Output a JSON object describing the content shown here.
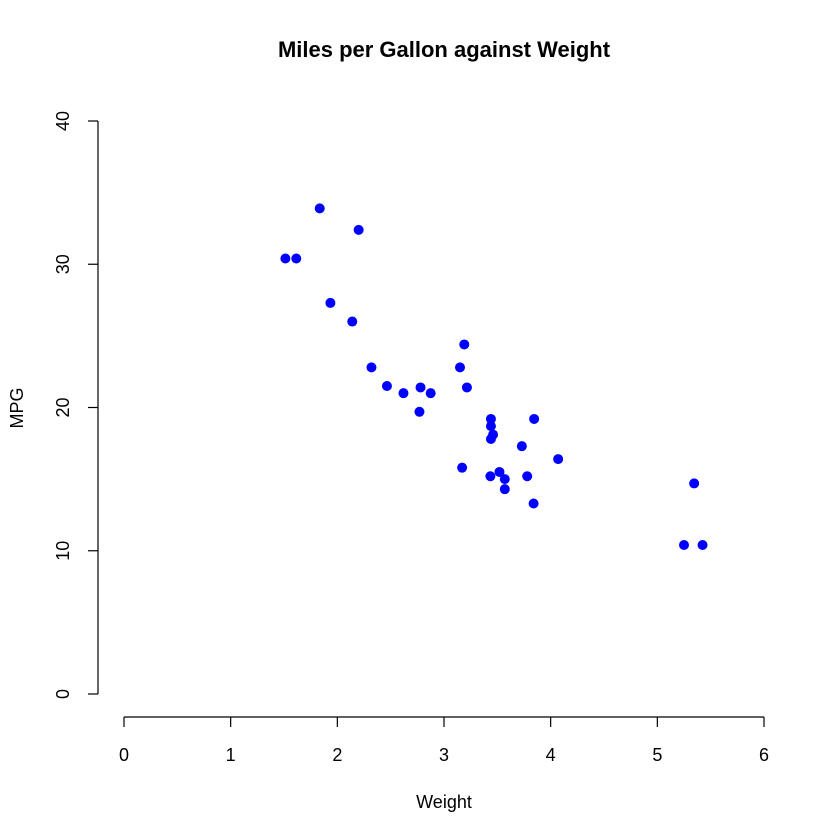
{
  "chart_data": {
    "type": "scatter",
    "title": "Miles per Gallon against Weight",
    "xlabel": "Weight",
    "ylabel": "MPG",
    "xlim": [
      0,
      6
    ],
    "ylim": [
      0,
      40
    ],
    "xticks": [
      0,
      1,
      2,
      3,
      4,
      5,
      6
    ],
    "yticks": [
      0,
      10,
      20,
      30,
      40
    ],
    "grid": false,
    "marker_color": "#0000ff",
    "series": [
      {
        "points": [
          {
            "x": 2.62,
            "y": 21.0
          },
          {
            "x": 2.875,
            "y": 21.0
          },
          {
            "x": 2.32,
            "y": 22.8
          },
          {
            "x": 3.215,
            "y": 21.4
          },
          {
            "x": 3.44,
            "y": 18.7
          },
          {
            "x": 3.46,
            "y": 18.1
          },
          {
            "x": 3.57,
            "y": 14.3
          },
          {
            "x": 3.19,
            "y": 24.4
          },
          {
            "x": 3.15,
            "y": 22.8
          },
          {
            "x": 3.44,
            "y": 19.2
          },
          {
            "x": 3.44,
            "y": 17.8
          },
          {
            "x": 4.07,
            "y": 16.4
          },
          {
            "x": 3.73,
            "y": 17.3
          },
          {
            "x": 3.78,
            "y": 15.2
          },
          {
            "x": 5.25,
            "y": 10.4
          },
          {
            "x": 5.424,
            "y": 10.4
          },
          {
            "x": 5.345,
            "y": 14.7
          },
          {
            "x": 2.2,
            "y": 32.4
          },
          {
            "x": 1.615,
            "y": 30.4
          },
          {
            "x": 1.835,
            "y": 33.9
          },
          {
            "x": 2.465,
            "y": 21.5
          },
          {
            "x": 3.52,
            "y": 15.5
          },
          {
            "x": 3.435,
            "y": 15.2
          },
          {
            "x": 3.84,
            "y": 13.3
          },
          {
            "x": 3.845,
            "y": 19.2
          },
          {
            "x": 1.935,
            "y": 27.3
          },
          {
            "x": 2.14,
            "y": 26.0
          },
          {
            "x": 1.513,
            "y": 30.4
          },
          {
            "x": 3.17,
            "y": 15.8
          },
          {
            "x": 2.77,
            "y": 19.7
          },
          {
            "x": 3.57,
            "y": 15.0
          },
          {
            "x": 2.78,
            "y": 21.4
          }
        ]
      }
    ]
  }
}
